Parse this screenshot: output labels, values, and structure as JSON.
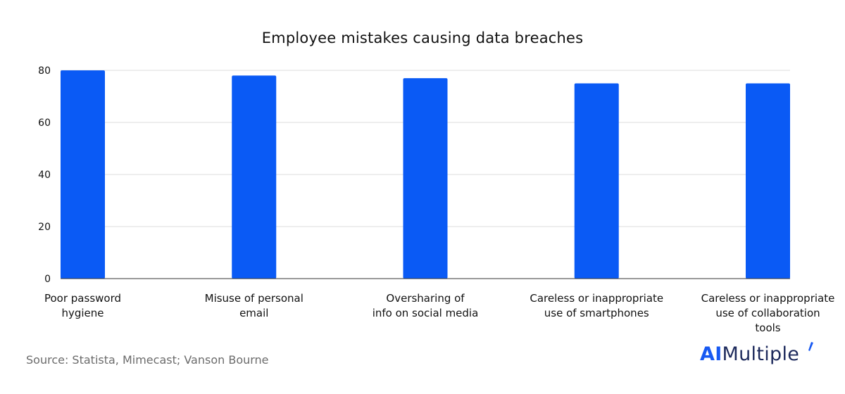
{
  "chart_data": {
    "type": "bar",
    "title": "Employee mistakes causing data breaches",
    "categories": [
      "Poor password\nhygiene",
      "Misuse of personal\nemail",
      "Oversharing of\ninfo on social media",
      "Careless or inappropriate\nuse of smartphones",
      "Careless or inappropriate\nuse of collaboration\ntools"
    ],
    "values": [
      80,
      78,
      77,
      75,
      75
    ],
    "ylim": [
      0,
      80
    ],
    "yticks": [
      0,
      20,
      40,
      60,
      80
    ],
    "xlabel": "",
    "ylabel": "",
    "grid": true,
    "bar_color": "#0a5af5",
    "grid_color": "#dcdcdc"
  },
  "source": "Source: Statista, Mimecast; Vanson Bourne",
  "logo": {
    "prefix": "AI",
    "suffix": "Multiple",
    "accent_color": "#1859f2"
  }
}
